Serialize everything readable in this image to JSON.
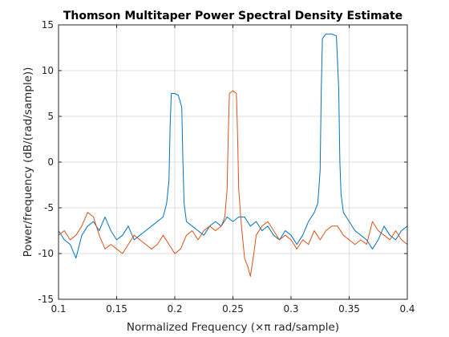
{
  "chart_data": {
    "type": "line",
    "title": "Thomson Multitaper Power Spectral Density Estimate",
    "xlabel": "Normalized Frequency  (×π rad/sample)",
    "ylabel": "Power/frequency (dB/(rad/sample))",
    "xlim": [
      0.1,
      0.4
    ],
    "ylim": [
      -15,
      15
    ],
    "xticks": [
      "0.1",
      "0.15",
      "0.2",
      "0.25",
      "0.3",
      "0.35",
      "0.4"
    ],
    "yticks": [
      "-15",
      "-10",
      "-5",
      "0",
      "5",
      "10",
      "15"
    ],
    "grid": true,
    "legend": "none",
    "series": [
      {
        "color": "#0072bd",
        "x": [
          0.1,
          0.105,
          0.11,
          0.115,
          0.12,
          0.125,
          0.13,
          0.135,
          0.14,
          0.145,
          0.15,
          0.155,
          0.16,
          0.165,
          0.17,
          0.175,
          0.18,
          0.185,
          0.19,
          0.193,
          0.195,
          0.196,
          0.197,
          0.2,
          0.203,
          0.206,
          0.207,
          0.208,
          0.21,
          0.215,
          0.22,
          0.225,
          0.23,
          0.235,
          0.24,
          0.245,
          0.25,
          0.255,
          0.26,
          0.265,
          0.27,
          0.275,
          0.28,
          0.285,
          0.29,
          0.295,
          0.3,
          0.305,
          0.31,
          0.315,
          0.32,
          0.323,
          0.325,
          0.326,
          0.327,
          0.33,
          0.335,
          0.339,
          0.341,
          0.342,
          0.343,
          0.345,
          0.35,
          0.355,
          0.36,
          0.365,
          0.37,
          0.375,
          0.38,
          0.385,
          0.39,
          0.395,
          0.4
        ],
        "y": [
          -7.5,
          -8.5,
          -9.0,
          -10.5,
          -8.0,
          -7.0,
          -6.5,
          -7.5,
          -6.0,
          -7.5,
          -8.5,
          -8.0,
          -7.0,
          -8.5,
          -8.0,
          -7.5,
          -7.0,
          -6.5,
          -6.0,
          -4.5,
          -2.0,
          4.0,
          7.5,
          7.5,
          7.3,
          6.0,
          0.0,
          -4.5,
          -6.5,
          -7.0,
          -7.5,
          -8.0,
          -7.0,
          -6.5,
          -7.0,
          -6.0,
          -6.5,
          -6.0,
          -6.0,
          -7.0,
          -6.5,
          -7.5,
          -7.0,
          -8.0,
          -8.5,
          -7.5,
          -8.0,
          -9.0,
          -8.0,
          -6.5,
          -5.5,
          -4.5,
          -1.0,
          8.0,
          13.5,
          14.0,
          14.0,
          13.8,
          8.0,
          0.0,
          -3.5,
          -5.5,
          -6.5,
          -7.5,
          -8.0,
          -8.5,
          -9.5,
          -8.5,
          -7.0,
          -8.0,
          -8.5,
          -7.5,
          -7.0
        ]
      },
      {
        "color": "#d95319",
        "x": [
          0.1,
          0.105,
          0.11,
          0.115,
          0.12,
          0.125,
          0.13,
          0.135,
          0.14,
          0.145,
          0.15,
          0.155,
          0.16,
          0.165,
          0.17,
          0.175,
          0.18,
          0.185,
          0.19,
          0.195,
          0.2,
          0.205,
          0.21,
          0.215,
          0.22,
          0.225,
          0.23,
          0.235,
          0.24,
          0.243,
          0.245,
          0.246,
          0.247,
          0.25,
          0.253,
          0.254,
          0.255,
          0.257,
          0.26,
          0.263,
          0.265,
          0.268,
          0.27,
          0.275,
          0.28,
          0.285,
          0.29,
          0.295,
          0.3,
          0.305,
          0.31,
          0.315,
          0.32,
          0.325,
          0.33,
          0.335,
          0.34,
          0.345,
          0.35,
          0.355,
          0.36,
          0.365,
          0.37,
          0.375,
          0.38,
          0.385,
          0.39,
          0.395,
          0.4
        ],
        "y": [
          -8.0,
          -7.5,
          -8.5,
          -8.0,
          -7.0,
          -5.5,
          -6.0,
          -8.0,
          -9.5,
          -9.0,
          -9.5,
          -10.0,
          -9.0,
          -8.0,
          -8.5,
          -9.0,
          -9.5,
          -9.0,
          -8.0,
          -9.0,
          -10.0,
          -9.5,
          -8.0,
          -7.5,
          -8.5,
          -7.5,
          -7.0,
          -7.5,
          -7.0,
          -6.0,
          -3.0,
          3.0,
          7.5,
          7.8,
          7.5,
          3.0,
          -3.0,
          -6.5,
          -10.5,
          -11.5,
          -12.5,
          -10.0,
          -8.0,
          -7.0,
          -6.5,
          -7.5,
          -8.5,
          -8.0,
          -8.5,
          -9.5,
          -8.5,
          -9.0,
          -7.5,
          -8.5,
          -7.5,
          -7.0,
          -7.0,
          -8.0,
          -8.5,
          -9.0,
          -8.5,
          -9.0,
          -6.5,
          -7.5,
          -8.0,
          -8.5,
          -7.5,
          -8.5,
          -9.0
        ]
      }
    ]
  }
}
